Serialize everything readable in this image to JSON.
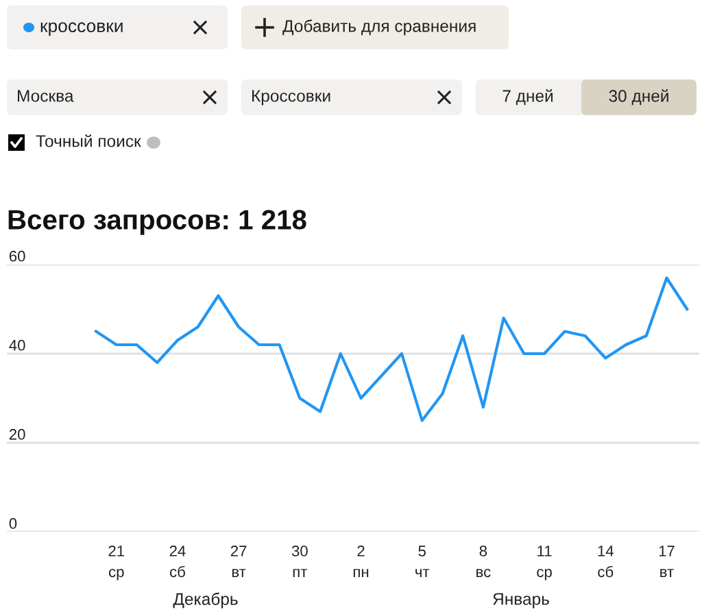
{
  "chart_data": {
    "type": "line",
    "title": "Всего запросов: 1 218",
    "categories": [
      null,
      "21\nср",
      null,
      null,
      "24\nсб",
      null,
      null,
      "27\nвт",
      null,
      null,
      "30\nпт",
      null,
      null,
      "2\nпн",
      null,
      null,
      "5\nчт",
      null,
      null,
      "8\nвс",
      null,
      null,
      "11\nср",
      null,
      null,
      "14\nсб",
      null,
      null,
      "17\nвт",
      null
    ],
    "series": [
      {
        "name": "кроссовки",
        "color": "#2196f3",
        "values": [
          45,
          42,
          42,
          38,
          43,
          46,
          53,
          46,
          42,
          42,
          30,
          27,
          40,
          30,
          35,
          40,
          25,
          31,
          44,
          28,
          48,
          40,
          40,
          45,
          44,
          39,
          42,
          44,
          57,
          50
        ]
      }
    ],
    "ylim": [
      0,
      60
    ],
    "yticks": [
      0,
      20,
      40,
      60
    ],
    "grid": "y",
    "legend": "top left",
    "annotations": [
      "Добавить для сравнения",
      "Москва",
      "Кроссовки",
      "7 дней",
      "30 дней",
      "Точный поиск",
      "Декабрь",
      "Январь"
    ]
  }
}
